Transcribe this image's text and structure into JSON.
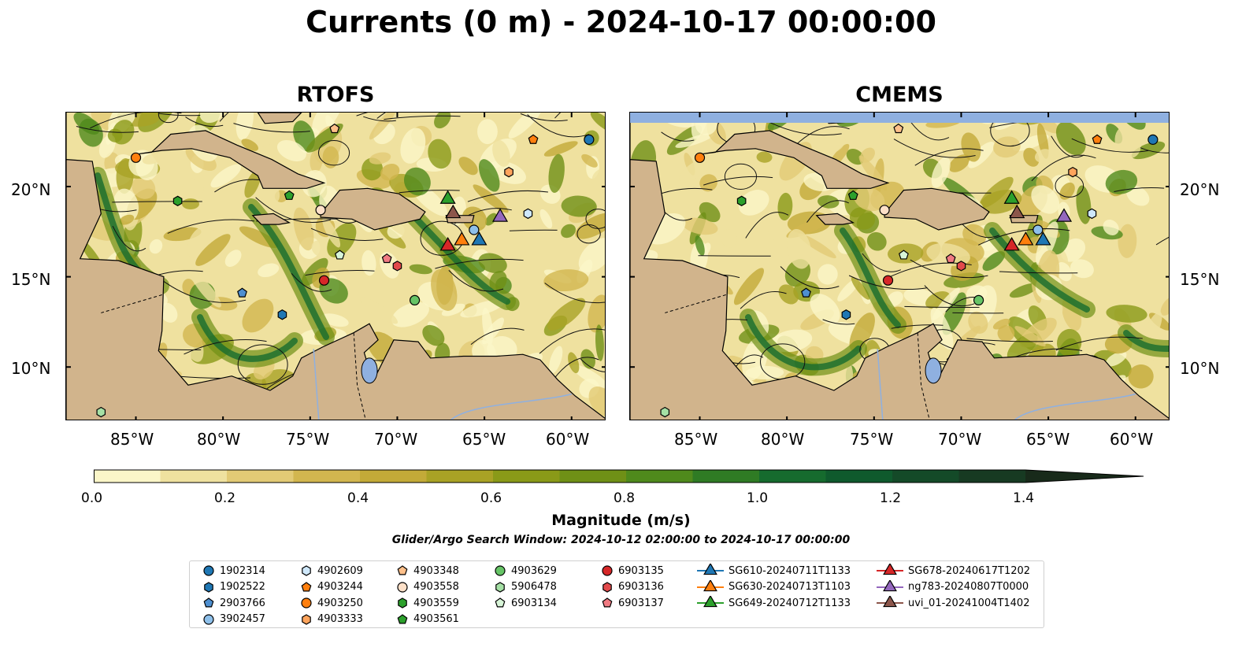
{
  "title": "Currents (0 m) - 2024-10-17 00:00:00",
  "panels": [
    {
      "title": "RTOFS"
    },
    {
      "title": "CMEMS"
    }
  ],
  "lat_ticks": [
    "20°N",
    "15°N",
    "10°N"
  ],
  "lon_ticks": [
    "85°W",
    "80°W",
    "75°W",
    "70°W",
    "65°W",
    "60°W"
  ],
  "colorbar": {
    "label": "Magnitude (m/s)",
    "ticks": [
      "0.0",
      "0.2",
      "0.4",
      "0.6",
      "0.8",
      "1.0",
      "1.2",
      "1.4"
    ],
    "colors": [
      "#fbf6c8",
      "#efe19f",
      "#e2ca75",
      "#d2b64f",
      "#c3aa38",
      "#a9a225",
      "#8a9a18",
      "#6f9016",
      "#4f8a1c",
      "#2f7b24",
      "#166b2e",
      "#0f5a2d",
      "#144a28",
      "#173a22",
      "#182a1a"
    ]
  },
  "search_window": "Glider/Argo Search Window: 2024-10-12 02:00:00 to 2024-10-17 00:00:00",
  "land_color": "#d1b48c",
  "water_color": "#8fb0e0",
  "legend": [
    {
      "label": "1902314",
      "marker": "circle",
      "color": "#1f77b4"
    },
    {
      "label": "1902522",
      "marker": "hexagon",
      "color": "#1f77b4"
    },
    {
      "label": "2903766",
      "marker": "pentagon",
      "color": "#4e8fd0"
    },
    {
      "label": "3902457",
      "marker": "circle",
      "color": "#8ec0ea"
    },
    {
      "label": "4902609",
      "marker": "hexagon",
      "color": "#cfe8fb"
    },
    {
      "label": "4903244",
      "marker": "pentagon",
      "color": "#ff7f0e"
    },
    {
      "label": "4903250",
      "marker": "circle",
      "color": "#ff7f0e"
    },
    {
      "label": "4903333",
      "marker": "hexagon",
      "color": "#ffa45c"
    },
    {
      "label": "4903348",
      "marker": "pentagon",
      "color": "#ffc08a"
    },
    {
      "label": "4903558",
      "marker": "circle",
      "color": "#fde0c8"
    },
    {
      "label": "4903559",
      "marker": "hexagon",
      "color": "#2ca02c"
    },
    {
      "label": "4903561",
      "marker": "pentagon",
      "color": "#2ca02c"
    },
    {
      "label": "4903629",
      "marker": "circle",
      "color": "#66c466"
    },
    {
      "label": "5906478",
      "marker": "hexagon",
      "color": "#a5e0a5"
    },
    {
      "label": "6903134",
      "marker": "pentagon",
      "color": "#d8f5d8"
    },
    {
      "label": "6903135",
      "marker": "circle",
      "color": "#d62728"
    },
    {
      "label": "6903136",
      "marker": "hexagon",
      "color": "#e24a4b"
    },
    {
      "label": "6903137",
      "marker": "pentagon",
      "color": "#f07a82"
    },
    {
      "label": "SG610-20240711T1133",
      "marker": "triangle",
      "color": "#1f77b4"
    },
    {
      "label": "SG630-20240713T1103",
      "marker": "triangle",
      "color": "#ff7f0e"
    },
    {
      "label": "SG649-20240712T1133",
      "marker": "triangle",
      "color": "#2ca02c"
    },
    {
      "label": "SG678-20240617T1202",
      "marker": "triangle",
      "color": "#d62728"
    },
    {
      "label": "ng783-20240807T0000",
      "marker": "triangle",
      "color": "#9467bd"
    },
    {
      "label": "uvi_01-20241004T1402",
      "marker": "triangle",
      "color": "#8c564b"
    }
  ],
  "positions": [
    {
      "id": "1902314",
      "lon": -59.0,
      "lat": 22.6
    },
    {
      "id": "1902522",
      "lon": -76.6,
      "lat": 12.9
    },
    {
      "id": "2903766",
      "lon": -78.9,
      "lat": 14.1
    },
    {
      "id": "3902457",
      "lon": -65.6,
      "lat": 17.6
    },
    {
      "id": "4902609",
      "lon": -62.5,
      "lat": 18.5
    },
    {
      "id": "4903244",
      "lon": -62.2,
      "lat": 22.6
    },
    {
      "id": "4903250",
      "lon": -85.0,
      "lat": 21.6
    },
    {
      "id": "4903333",
      "lon": -63.6,
      "lat": 20.8
    },
    {
      "id": "4903348",
      "lon": -73.6,
      "lat": 23.2
    },
    {
      "id": "4903558",
      "lon": -74.4,
      "lat": 18.7
    },
    {
      "id": "4903559",
      "lon": -82.6,
      "lat": 19.2
    },
    {
      "id": "4903561",
      "lon": -76.2,
      "lat": 19.5
    },
    {
      "id": "4903629",
      "lon": -69.0,
      "lat": 13.7
    },
    {
      "id": "5906478",
      "lon": -87.0,
      "lat": 7.5
    },
    {
      "id": "6903134",
      "lon": -73.3,
      "lat": 16.2
    },
    {
      "id": "6903135",
      "lon": -74.2,
      "lat": 14.8
    },
    {
      "id": "6903136",
      "lon": -70.0,
      "lat": 15.6
    },
    {
      "id": "6903137",
      "lon": -70.6,
      "lat": 16.0
    },
    {
      "id": "SG610-20240711T1133",
      "lon": -65.3,
      "lat": 17.0
    },
    {
      "id": "SG630-20240713T1103",
      "lon": -66.3,
      "lat": 17.0
    },
    {
      "id": "SG649-20240712T1133",
      "lon": -67.1,
      "lat": 19.3
    },
    {
      "id": "SG678-20240617T1202",
      "lon": -67.1,
      "lat": 16.7
    },
    {
      "id": "ng783-20240807T0000",
      "lon": -64.1,
      "lat": 18.3
    },
    {
      "id": "uvi_01-20241004T1402",
      "lon": -66.8,
      "lat": 18.5
    }
  ]
}
